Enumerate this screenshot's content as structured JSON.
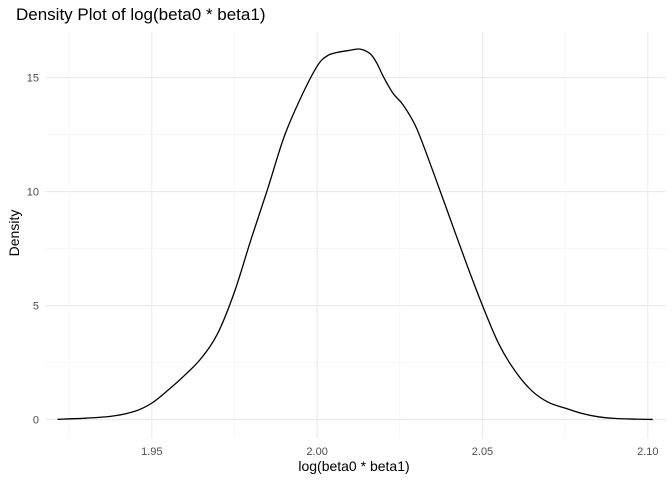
{
  "chart_data": {
    "type": "line",
    "title": "Density Plot of log(beta0 * beta1)",
    "xlabel": "log(beta0 * beta1)",
    "ylabel": "Density",
    "xlim": [
      1.9177,
      2.1055
    ],
    "ylim": [
      -0.81,
      17.0
    ],
    "x_ticks": [
      1.95,
      2.0,
      2.05,
      2.1
    ],
    "x_tick_labels": [
      "1.95",
      "2.00",
      "2.05",
      "2.10"
    ],
    "x_minor_ticks": [
      1.925,
      1.975,
      2.025,
      2.075
    ],
    "y_ticks": [
      0,
      5,
      10,
      15
    ],
    "y_tick_labels": [
      "0",
      "5",
      "10",
      "15"
    ],
    "y_minor_ticks": [
      2.5,
      7.5,
      12.5
    ],
    "grid": true,
    "legend": "none",
    "line_color": "#000000",
    "series": [
      {
        "x": [
          1.9215,
          1.93,
          1.938,
          1.945,
          1.95,
          1.955,
          1.96,
          1.965,
          1.97,
          1.975,
          1.98,
          1.985,
          1.99,
          1.995,
          2.0,
          2.003,
          2.006,
          2.01,
          2.013,
          2.016,
          2.018,
          2.02,
          2.023,
          2.026,
          2.03,
          2.035,
          2.04,
          2.045,
          2.05,
          2.055,
          2.06,
          2.065,
          2.07,
          2.075,
          2.08,
          2.085,
          2.09,
          2.095,
          2.1015
        ],
        "y": [
          0.01,
          0.06,
          0.15,
          0.37,
          0.72,
          1.3,
          1.95,
          2.7,
          3.8,
          5.6,
          7.9,
          10.1,
          12.4,
          14.1,
          15.5,
          15.95,
          16.1,
          16.2,
          16.25,
          16.05,
          15.65,
          15.05,
          14.3,
          13.8,
          12.8,
          10.9,
          8.9,
          6.9,
          5.0,
          3.3,
          2.1,
          1.25,
          0.75,
          0.5,
          0.27,
          0.12,
          0.05,
          0.02,
          0.005
        ]
      }
    ]
  }
}
